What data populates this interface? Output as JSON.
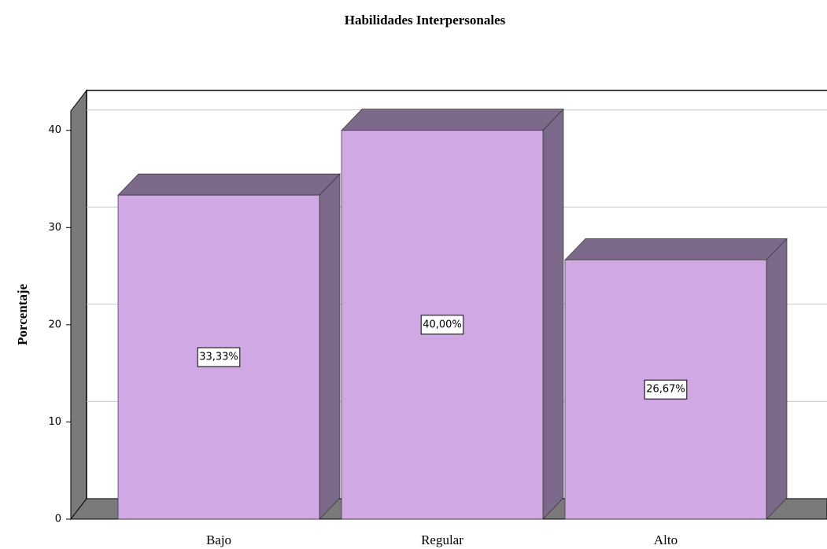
{
  "chart_data": {
    "type": "bar",
    "title": "Habilidades Interpersonales",
    "y_label": "Porcentaje",
    "categories": [
      "Bajo",
      "Regular",
      "Alto"
    ],
    "values": [
      33.33,
      40.0,
      26.67
    ],
    "value_labels": [
      "33,33%",
      "40,00%",
      "26,67%"
    ],
    "color": "#d0a8e4",
    "shade_color": "#7d6a8a",
    "ylim": [
      0,
      42
    ],
    "yticks": [
      0,
      10,
      20,
      30,
      40
    ],
    "grid": true
  }
}
